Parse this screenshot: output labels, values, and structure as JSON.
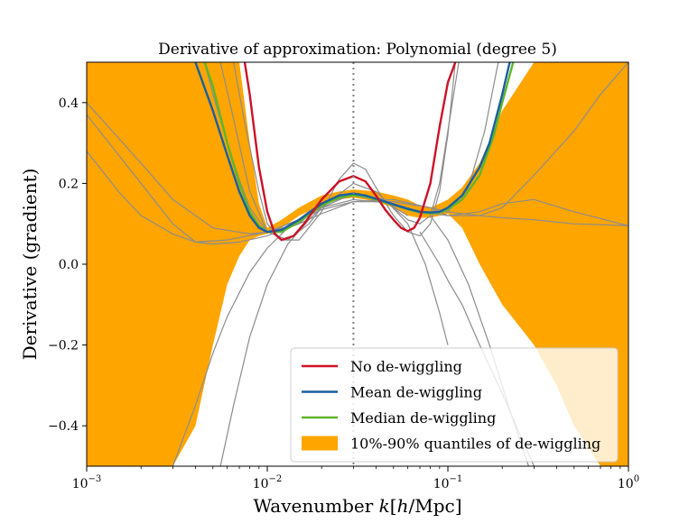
{
  "chart_data": {
    "type": "line",
    "title": "Derivative of approximation: Polynomial (degree 5)",
    "xlabel": "Wavenumber k[h/Mpc]",
    "ylabel": "Derivative (gradient)",
    "xscale": "log",
    "xlim": [
      0.001,
      1.0
    ],
    "ylim": [
      -0.5,
      0.5
    ],
    "x_ticks": [
      {
        "value": 0.001,
        "label": "10^-3"
      },
      {
        "value": 0.01,
        "label": "10^-2"
      },
      {
        "value": 0.1,
        "label": "10^-1"
      },
      {
        "value": 1.0,
        "label": "10^0"
      }
    ],
    "y_ticks": [
      {
        "value": 0.4,
        "label": "0.4"
      },
      {
        "value": 0.2,
        "label": "0.2"
      },
      {
        "value": 0.0,
        "label": "0.0"
      },
      {
        "value": -0.2,
        "label": "−0.2"
      },
      {
        "value": -0.4,
        "label": "−0.4"
      }
    ],
    "vertical_line": {
      "x": 0.03,
      "style": "dotted",
      "color": "#808080"
    },
    "grid": false,
    "legend_position": "lower right",
    "legend": [
      {
        "label": "No de-wiggling",
        "color": "#cc1126",
        "kind": "line"
      },
      {
        "label": "Mean de-wiggling",
        "color": "#1a5fa0",
        "kind": "line"
      },
      {
        "label": "Median de-wiggling",
        "color": "#5fb52b",
        "kind": "line"
      },
      {
        "label": "10%-90% quantiles of de-wiggling",
        "color": "#ffa500",
        "kind": "patch"
      }
    ],
    "band": {
      "name": "10%-90% quantiles of de-wiggling",
      "color": "#ffa500",
      "x": [
        0.001,
        0.0015,
        0.002,
        0.003,
        0.004,
        0.005,
        0.006,
        0.007,
        0.008,
        0.009,
        0.01,
        0.012,
        0.015,
        0.02,
        0.025,
        0.03,
        0.04,
        0.05,
        0.06,
        0.07,
        0.08,
        0.09,
        0.1,
        0.12,
        0.15,
        0.2,
        0.3,
        0.4,
        0.5,
        0.7,
        1.0
      ],
      "lower": [
        -0.5,
        -0.5,
        -0.5,
        -0.5,
        -0.4,
        -0.2,
        -0.05,
        0.02,
        0.06,
        0.07,
        0.075,
        0.09,
        0.12,
        0.145,
        0.16,
        0.165,
        0.155,
        0.14,
        0.12,
        0.115,
        0.115,
        0.12,
        0.125,
        0.09,
        0.0,
        -0.1,
        -0.2,
        -0.3,
        -0.4,
        -0.5,
        -0.5
      ],
      "upper": [
        0.5,
        0.5,
        0.5,
        0.5,
        0.5,
        0.5,
        0.5,
        0.5,
        0.3,
        0.15,
        0.09,
        0.11,
        0.14,
        0.17,
        0.18,
        0.185,
        0.18,
        0.17,
        0.16,
        0.145,
        0.14,
        0.15,
        0.16,
        0.19,
        0.25,
        0.38,
        0.5,
        0.5,
        0.5,
        0.5,
        0.5
      ]
    },
    "series": [
      {
        "name": "No de-wiggling",
        "color": "#cc1126",
        "x": [
          0.0075,
          0.008,
          0.009,
          0.01,
          0.011,
          0.012,
          0.014,
          0.016,
          0.02,
          0.025,
          0.03,
          0.035,
          0.04,
          0.045,
          0.05,
          0.055,
          0.06,
          0.065,
          0.07,
          0.08,
          0.09,
          0.1,
          0.11
        ],
        "y": [
          0.5,
          0.42,
          0.24,
          0.13,
          0.075,
          0.06,
          0.07,
          0.1,
          0.16,
          0.205,
          0.218,
          0.205,
          0.17,
          0.135,
          0.11,
          0.09,
          0.082,
          0.09,
          0.115,
          0.2,
          0.34,
          0.45,
          0.5
        ]
      },
      {
        "name": "Mean de-wiggling",
        "color": "#1a5fa0",
        "x": [
          0.004,
          0.005,
          0.006,
          0.007,
          0.008,
          0.009,
          0.01,
          0.012,
          0.015,
          0.02,
          0.025,
          0.03,
          0.035,
          0.04,
          0.05,
          0.06,
          0.07,
          0.08,
          0.09,
          0.1,
          0.12,
          0.15,
          0.17,
          0.2,
          0.22
        ],
        "y": [
          0.5,
          0.38,
          0.27,
          0.18,
          0.12,
          0.09,
          0.08,
          0.085,
          0.11,
          0.15,
          0.17,
          0.175,
          0.17,
          0.162,
          0.148,
          0.137,
          0.13,
          0.128,
          0.13,
          0.14,
          0.17,
          0.24,
          0.3,
          0.42,
          0.5
        ]
      },
      {
        "name": "Median de-wiggling",
        "color": "#5fb52b",
        "x": [
          0.0045,
          0.005,
          0.006,
          0.007,
          0.008,
          0.009,
          0.01,
          0.012,
          0.015,
          0.02,
          0.025,
          0.03,
          0.035,
          0.04,
          0.05,
          0.06,
          0.07,
          0.08,
          0.09,
          0.1,
          0.12,
          0.15,
          0.18,
          0.2,
          0.23
        ],
        "y": [
          0.5,
          0.44,
          0.3,
          0.2,
          0.13,
          0.095,
          0.08,
          0.08,
          0.105,
          0.145,
          0.165,
          0.17,
          0.168,
          0.16,
          0.147,
          0.136,
          0.128,
          0.126,
          0.128,
          0.136,
          0.16,
          0.22,
          0.32,
          0.4,
          0.5
        ]
      },
      {
        "name": "",
        "color": "#8c8c8c",
        "x": [
          0.001,
          0.002,
          0.003,
          0.005,
          0.008,
          0.01,
          0.015,
          0.02,
          0.03,
          0.05,
          0.07,
          0.1,
          0.15,
          0.2,
          0.3,
          0.5,
          1.0
        ],
        "y": [
          0.4,
          0.25,
          0.16,
          0.09,
          0.075,
          0.08,
          0.11,
          0.14,
          0.16,
          0.15,
          0.13,
          0.12,
          0.13,
          0.15,
          0.16,
          0.13,
          0.095
        ]
      },
      {
        "name": "",
        "color": "#8c8c8c",
        "x": [
          0.001,
          0.002,
          0.003,
          0.004,
          0.006,
          0.01,
          0.015,
          0.02,
          0.03,
          0.05,
          0.08,
          0.1,
          0.15,
          0.2,
          0.3,
          0.5,
          0.7,
          1.0
        ],
        "y": [
          0.37,
          0.2,
          0.1,
          0.055,
          0.06,
          0.08,
          0.11,
          0.135,
          0.155,
          0.155,
          0.14,
          0.13,
          0.12,
          0.115,
          0.11,
          0.1,
          0.098,
          0.095
        ]
      },
      {
        "name": "",
        "color": "#8c8c8c",
        "x": [
          0.001,
          0.0015,
          0.002,
          0.003,
          0.004,
          0.005,
          0.007,
          0.01,
          0.015,
          0.02,
          0.03,
          0.05,
          0.08,
          0.1,
          0.15,
          0.2,
          0.3,
          0.5,
          0.7,
          1.0
        ],
        "y": [
          0.28,
          0.18,
          0.12,
          0.075,
          0.055,
          0.05,
          0.055,
          0.07,
          0.1,
          0.125,
          0.155,
          0.16,
          0.14,
          0.12,
          0.12,
          0.14,
          0.22,
          0.33,
          0.42,
          0.5
        ]
      },
      {
        "name": "",
        "color": "#8c8c8c",
        "x": [
          0.0065,
          0.0075,
          0.009,
          0.01,
          0.012,
          0.015,
          0.02,
          0.025,
          0.03,
          0.035,
          0.04,
          0.05,
          0.06,
          0.07,
          0.08,
          0.09,
          0.1,
          0.11
        ],
        "y": [
          0.5,
          0.35,
          0.18,
          0.1,
          0.06,
          0.06,
          0.13,
          0.21,
          0.25,
          0.235,
          0.19,
          0.12,
          0.08,
          0.07,
          0.1,
          0.18,
          0.32,
          0.5
        ]
      },
      {
        "name": "",
        "color": "#8c8c8c",
        "x": [
          0.0055,
          0.0065,
          0.008,
          0.01,
          0.013,
          0.017,
          0.02,
          0.03,
          0.04,
          0.05,
          0.06,
          0.07,
          0.08,
          0.09,
          0.1,
          0.115
        ],
        "y": [
          0.5,
          0.36,
          0.18,
          0.08,
          0.06,
          0.1,
          0.14,
          0.2,
          0.18,
          0.14,
          0.11,
          0.1,
          0.12,
          0.2,
          0.33,
          0.5
        ]
      },
      {
        "name": "",
        "color": "#8c8c8c",
        "x": [
          0.0045,
          0.005,
          0.006,
          0.007,
          0.008,
          0.01,
          0.015,
          0.02,
          0.03,
          0.05,
          0.07,
          0.1,
          0.13,
          0.16,
          0.19
        ],
        "y": [
          0.5,
          0.42,
          0.3,
          0.21,
          0.14,
          0.08,
          0.1,
          0.15,
          0.175,
          0.15,
          0.13,
          0.13,
          0.19,
          0.33,
          0.5
        ]
      },
      {
        "name": "",
        "color": "#8c8c8c",
        "x": [
          0.0055,
          0.0065,
          0.008,
          0.01,
          0.013,
          0.017,
          0.02,
          0.03,
          0.045,
          0.06,
          0.075,
          0.09,
          0.1
        ],
        "y": [
          -0.5,
          -0.35,
          -0.18,
          -0.05,
          0.05,
          0.11,
          0.14,
          0.175,
          0.16,
          0.1,
          0.0,
          -0.12,
          -0.2
        ]
      },
      {
        "name": "",
        "color": "#8c8c8c",
        "x": [
          0.07,
          0.09,
          0.1,
          0.12,
          0.15,
          0.2,
          0.25,
          0.3
        ],
        "y": [
          0.08,
          0.0,
          -0.04,
          -0.1,
          -0.2,
          -0.32,
          -0.42,
          -0.5
        ]
      },
      {
        "name": "",
        "color": "#8c8c8c",
        "x": [
          0.003,
          0.004,
          0.005,
          0.006,
          0.008,
          0.01,
          0.013,
          0.017,
          0.02,
          0.03,
          0.045,
          0.06
        ],
        "y": [
          -0.5,
          -0.35,
          -0.22,
          -0.13,
          -0.02,
          0.04,
          0.09,
          0.13,
          0.15,
          0.17,
          0.155,
          0.12
        ]
      },
      {
        "name": "",
        "color": "#8c8c8c",
        "x": [
          0.08,
          0.1,
          0.13,
          0.17,
          0.22,
          0.28
        ],
        "y": [
          0.12,
          0.06,
          -0.05,
          -0.2,
          -0.36,
          -0.5
        ]
      }
    ]
  }
}
